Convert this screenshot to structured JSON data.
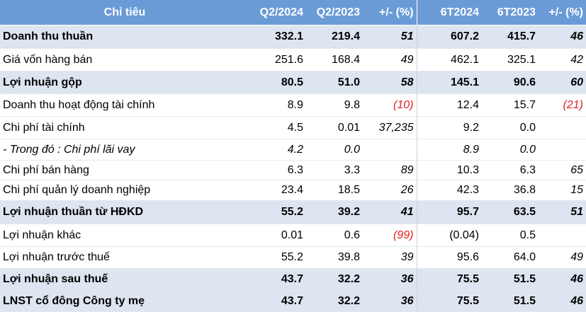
{
  "table": {
    "header": [
      "Chỉ tiêu",
      "Q2/2024",
      "Q2/2023",
      "+/- (%)",
      "6T2024",
      "6T2023",
      "+/- (%)"
    ],
    "rows": [
      [
        "Doanh thu thuần",
        "332.1",
        "219.4",
        "51",
        "607.2",
        "415.7",
        "46"
      ],
      [
        "Giá vốn hàng bán",
        "251.6",
        "168.4",
        "49",
        "462.1",
        "325.1",
        "42"
      ],
      [
        "Lợi nhuận gộp",
        "80.5",
        "51.0",
        "58",
        "145.1",
        "90.6",
        "60"
      ],
      [
        "Doanh thu hoạt động tài chính",
        "8.9",
        "9.8",
        "(10)",
        "12.4",
        "15.7",
        "(21)"
      ],
      [
        "Chi phí tài chính",
        "4.5",
        "0.01",
        "37,235",
        "9.2",
        "0.0",
        null
      ],
      [
        "- Trong đó : Chi phí lãi vay",
        "4.2",
        "0.0",
        null,
        "8.9",
        "0.0",
        null
      ],
      [
        "Chi phí bán hàng",
        "6.3",
        "3.3",
        "89",
        "10.3",
        "6.3",
        "65"
      ],
      [
        "Chi phí quản lý doanh nghiệp",
        "23.4",
        "18.5",
        "26",
        "42.3",
        "36.8",
        "15"
      ],
      [
        "Lợi nhuận thuần từ HĐKD",
        "55.2",
        "39.2",
        "41",
        "95.7",
        "63.5",
        "51"
      ],
      [
        "Lợi nhuận khác",
        "0.01",
        "0.6",
        "(99)",
        "(0.04)",
        "0.5",
        null
      ],
      [
        "Lợi nhuận trước thuế",
        "55.2",
        "39.8",
        "39",
        "95.6",
        "64.0",
        "49"
      ],
      [
        "Lợi nhuận sau thuế",
        "43.7",
        "32.2",
        "36",
        "75.5",
        "51.5",
        "46"
      ],
      [
        "LNST cổ đông Công ty mẹ",
        "43.7",
        "32.2",
        "36",
        "75.5",
        "51.5",
        "46"
      ]
    ]
  }
}
